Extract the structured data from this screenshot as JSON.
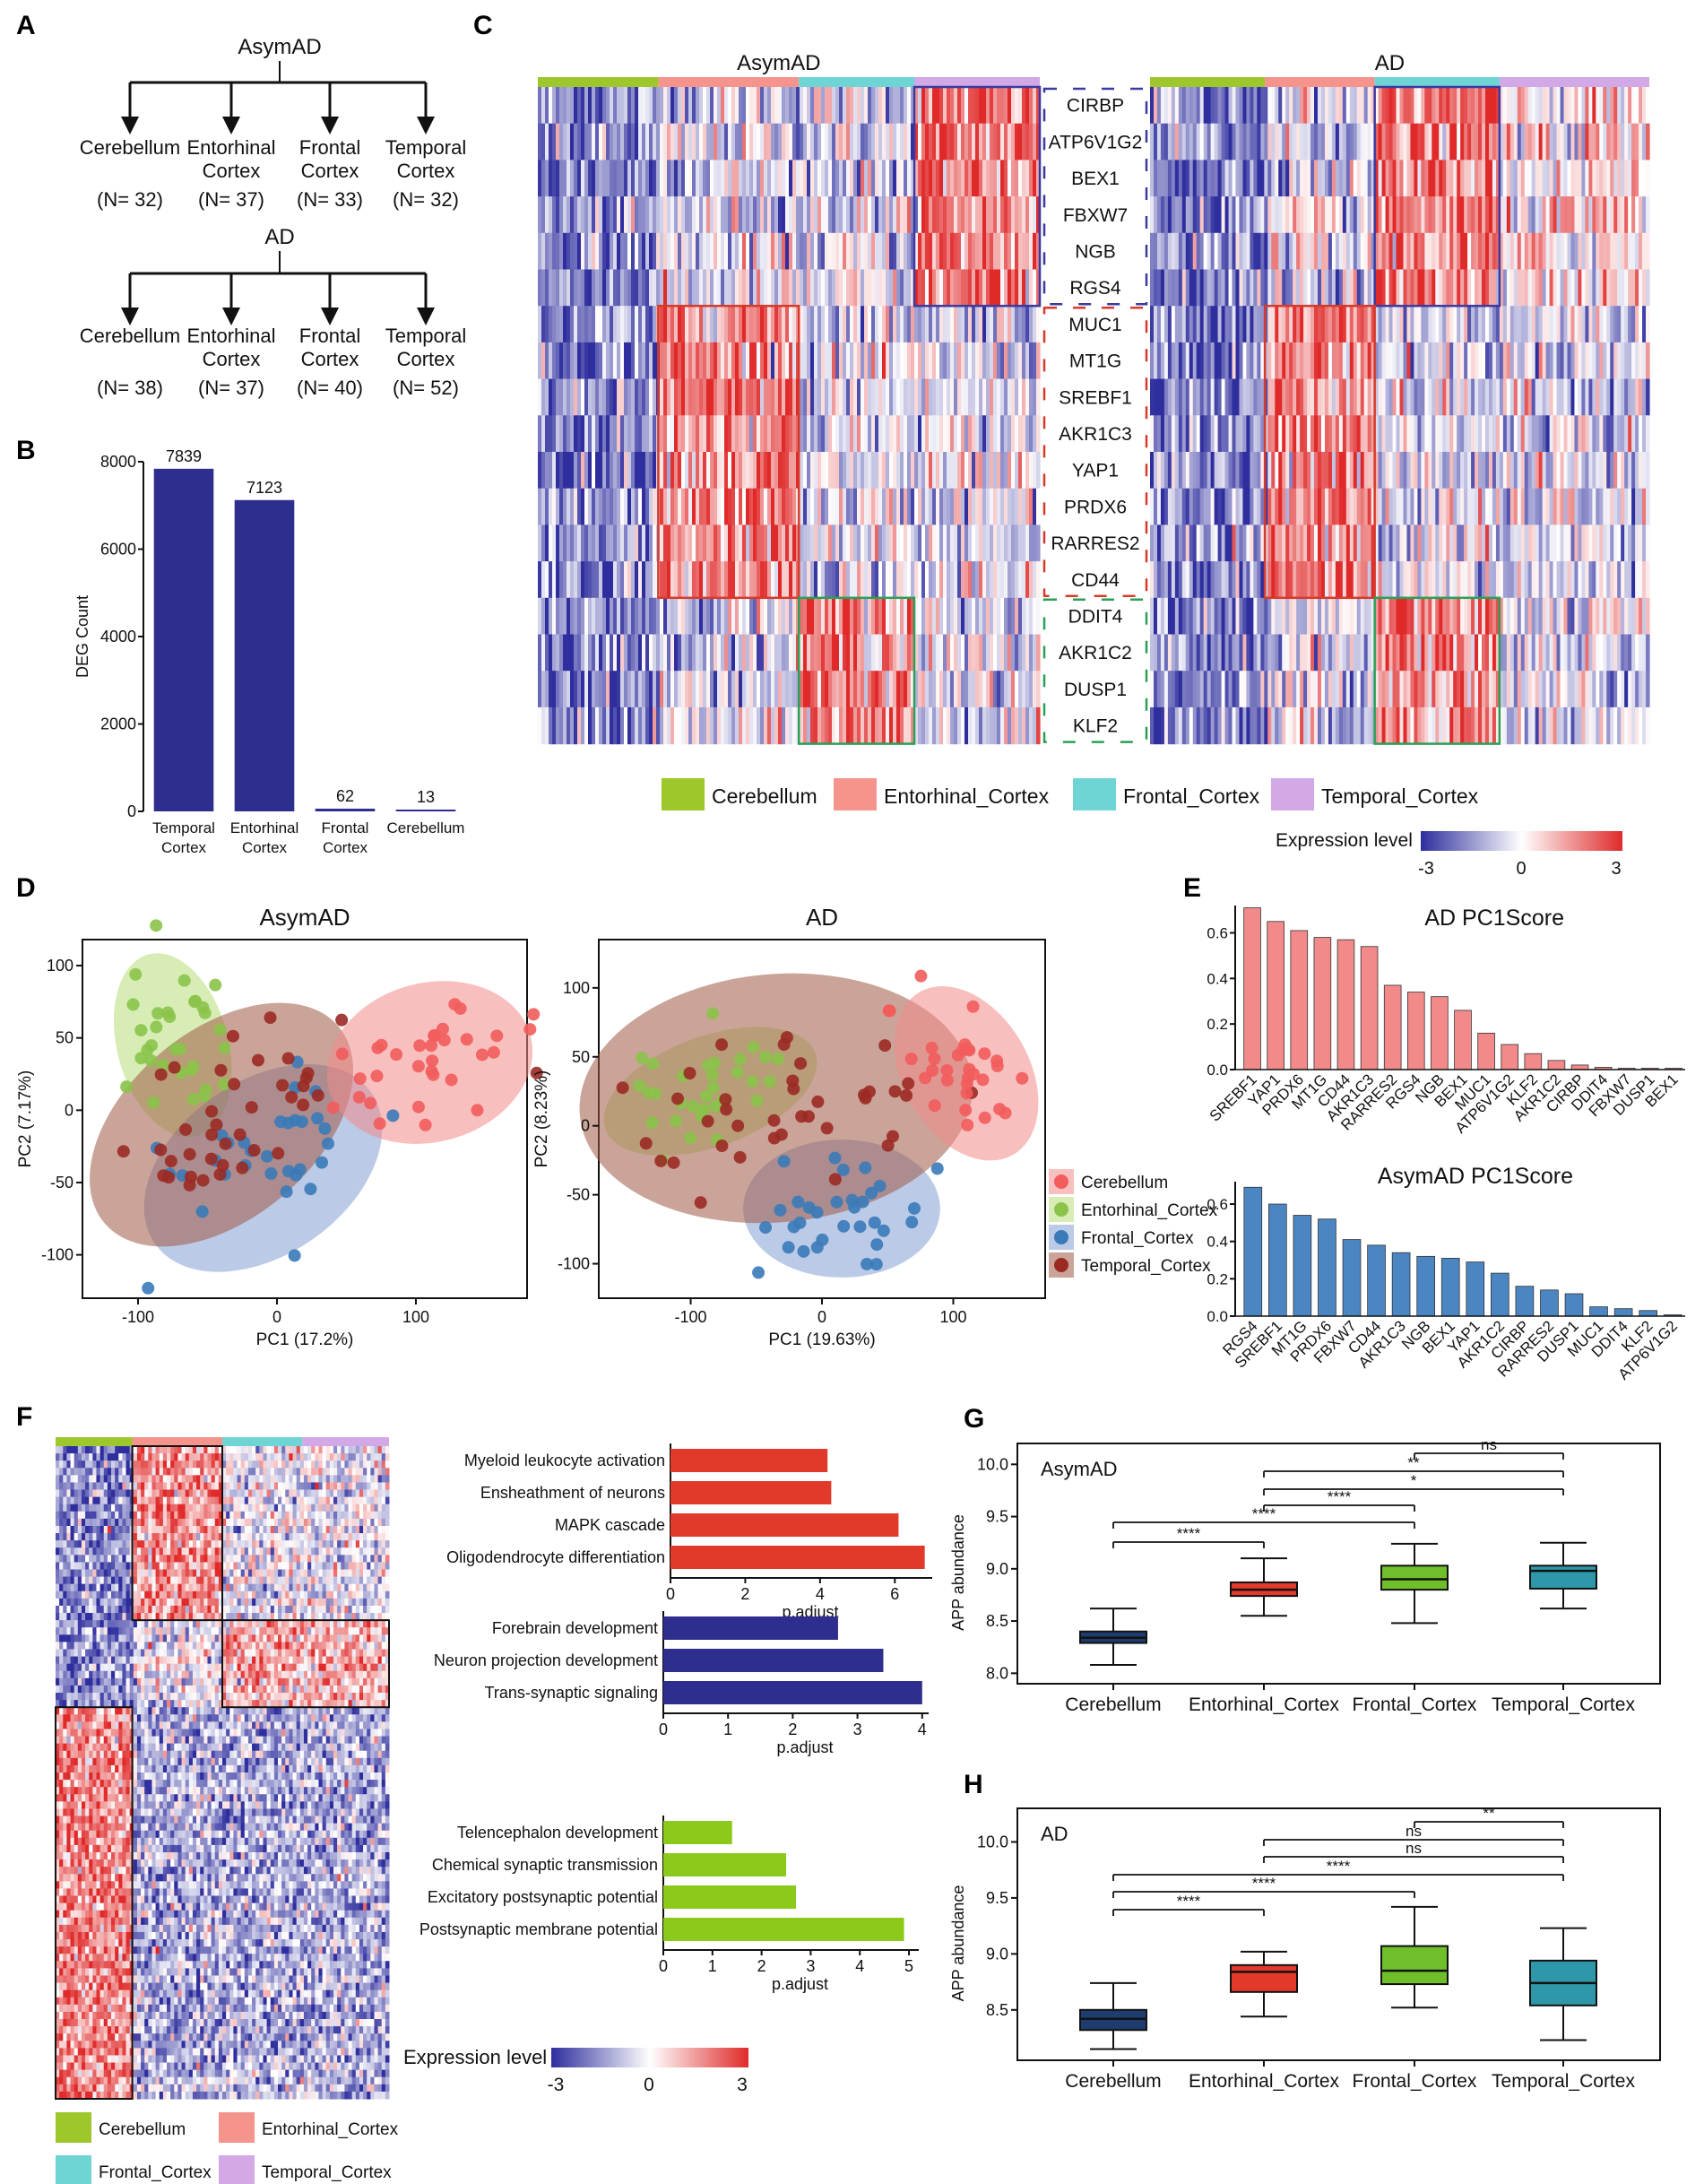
{
  "figure": {
    "panel_letters": [
      "A",
      "B",
      "C",
      "D",
      "E",
      "F",
      "G",
      "H"
    ],
    "legend_regions": [
      "Cerebellum",
      "Entorhinal_Cortex",
      "Frontal_Cortex",
      "Temporal_Cortex"
    ],
    "colors": {
      "Cerebellum": "#9dc72b",
      "Entorhinal_Cortex": "#f4948d",
      "Frontal_Cortex": "#6fd4d4",
      "Temporal_Cortex": "#d2a8e6",
      "heat_low": "#2e2e9e",
      "heat_mid": "#ffffff",
      "heat_high": "#e02a2a",
      "bar_blue": "#2e2e8e",
      "bar_red": "#e23a2a",
      "bar_green": "#8bc91a",
      "pc_red": "#f28a8a",
      "pc_blue": "#4b86c2"
    }
  },
  "panelA": {
    "groups": [
      {
        "title": "AsymAD",
        "children": [
          {
            "name": "Cerebellum",
            "n": "(N= 32)"
          },
          {
            "name": "Entorhinal Cortex",
            "n": "(N= 37)"
          },
          {
            "name": "Frontal Cortex",
            "n": "(N= 33)"
          },
          {
            "name": "Temporal Cortex",
            "n": "(N= 32)"
          }
        ]
      },
      {
        "title": "AD",
        "children": [
          {
            "name": "Cerebellum",
            "n": "(N= 38)"
          },
          {
            "name": "Entorhinal Cortex",
            "n": "(N= 37)"
          },
          {
            "name": "Frontal Cortex",
            "n": "(N= 40)"
          },
          {
            "name": "Temporal Cortex",
            "n": "(N= 52)"
          }
        ]
      }
    ]
  },
  "chart_data": [
    {
      "id": "B",
      "type": "bar",
      "title": "",
      "ylabel": "DEG Count",
      "xlabel": "",
      "categories": [
        "Temporal Cortex",
        "Entorhinal Cortex",
        "Frontal Cortex",
        "Cerebellum"
      ],
      "values": [
        7839,
        7123,
        62,
        13
      ],
      "value_labels": [
        "7839",
        "7123",
        "62",
        "13"
      ],
      "ylim": [
        0,
        8000
      ],
      "yticks": [
        0,
        2000,
        4000,
        6000,
        8000
      ]
    },
    {
      "id": "C",
      "type": "heatmap",
      "groups": [
        "AsymAD",
        "AD"
      ],
      "genes": [
        "CIRBP",
        "ATP6V1G2",
        "BEX1",
        "FBXW7",
        "NGB",
        "RGS4",
        "MUC1",
        "MT1G",
        "SREBF1",
        "AKR1C3",
        "YAP1",
        "PRDX6",
        "RARRES2",
        "CD44",
        "DDIT4",
        "AKR1C2",
        "DUSP1",
        "KLF2"
      ],
      "scale_label": "Expression level",
      "scale_ticks": [
        "-3",
        "0",
        "3"
      ]
    },
    {
      "id": "D1",
      "type": "scatter",
      "title": "AsymAD",
      "xlabel": "PC1 (17.2%)",
      "ylabel": "PC2 (7.17%)",
      "xlim": [
        -140,
        180
      ],
      "ylim": [
        -130,
        118
      ],
      "xticks": [
        -100,
        0,
        100
      ],
      "yticks": [
        -100,
        -50,
        0,
        50,
        100
      ],
      "ellipses": [
        {
          "region": "Cerebellum",
          "cx": 110,
          "cy": 33,
          "rx": 75,
          "ry": 55,
          "angle": -15
        },
        {
          "region": "Entorhinal_Cortex",
          "cx": -75,
          "cy": 45,
          "rx": 40,
          "ry": 65,
          "angle": -15
        },
        {
          "region": "Frontal_Cortex",
          "cx": -10,
          "cy": -40,
          "rx": 95,
          "ry": 60,
          "angle": -35
        },
        {
          "region": "Temporal_Cortex",
          "cx": -40,
          "cy": -10,
          "rx": 110,
          "ry": 65,
          "angle": -40
        }
      ]
    },
    {
      "id": "D2",
      "type": "scatter",
      "title": "AD",
      "xlabel": "PC1 (19.63%)",
      "ylabel": "PC2 (8.23%)",
      "xlim": [
        -170,
        170
      ],
      "ylim": [
        -125,
        135
      ],
      "xticks": [
        -100,
        0,
        100
      ],
      "yticks": [
        -100,
        -50,
        0,
        50,
        100
      ],
      "legend": [
        "Cerebellum",
        "Entorhinal_Cortex",
        "Frontal_Cortex",
        "Temporal_Cortex"
      ],
      "ellipses": [
        {
          "region": "Cerebellum",
          "cx": 110,
          "cy": 38,
          "rx": 48,
          "ry": 68,
          "angle": -30
        },
        {
          "region": "Entorhinal_Cortex",
          "cx": -85,
          "cy": 25,
          "rx": 85,
          "ry": 40,
          "angle": -20
        },
        {
          "region": "Frontal_Cortex",
          "cx": 15,
          "cy": -60,
          "rx": 75,
          "ry": 50,
          "angle": 0
        },
        {
          "region": "Temporal_Cortex",
          "cx": -35,
          "cy": 20,
          "rx": 150,
          "ry": 90,
          "angle": -5
        }
      ]
    },
    {
      "id": "E1",
      "type": "bar",
      "title": "AD PC1Score",
      "categories": [
        "SREBF1",
        "YAP1",
        "PRDX6",
        "MT1G",
        "CD44",
        "AKR1C3",
        "RARRES2",
        "RGS4",
        "NGB",
        "BEX1",
        "MUC1",
        "ATP6V1G2",
        "KLF2",
        "AKR1C2",
        "CIRBP",
        "DDIT4",
        "FBXW7",
        "DUSP1",
        "BEX1"
      ],
      "values": [
        0.71,
        0.65,
        0.61,
        0.58,
        0.57,
        0.54,
        0.37,
        0.34,
        0.32,
        0.26,
        0.16,
        0.11,
        0.07,
        0.04,
        0.02,
        0.01,
        0.005,
        0.002,
        0.001
      ],
      "ylim": [
        0,
        0.72
      ],
      "yticks": [
        "0.0",
        "0.2",
        "0.4",
        "0.6"
      ]
    },
    {
      "id": "E2",
      "type": "bar",
      "title": "AsymAD PC1Score",
      "categories": [
        "RGS4",
        "SREBF1",
        "MT1G",
        "PRDX6",
        "FBXW7",
        "CD44",
        "AKR1C3",
        "NGB",
        "BEX1",
        "YAP1",
        "AKR1C2",
        "CIRBP",
        "RARRES2",
        "DUSP1",
        "MUC1",
        "DDIT4",
        "KLF2",
        "ATP6V1G2"
      ],
      "values": [
        0.69,
        0.6,
        0.54,
        0.52,
        0.41,
        0.38,
        0.34,
        0.32,
        0.31,
        0.29,
        0.23,
        0.16,
        0.14,
        0.12,
        0.05,
        0.04,
        0.03,
        0.005
      ],
      "ylim": [
        0,
        0.72
      ],
      "yticks": [
        "0.0",
        "0.2",
        "0.4",
        "0.6"
      ]
    },
    {
      "id": "F1",
      "type": "bar",
      "orientation": "horizontal",
      "xlabel": "p.adjust",
      "categories": [
        "Myeloid leukocyte activation",
        "Ensheathment of neurons",
        "MAPK cascade",
        "Oligodendrocyte differentiation"
      ],
      "values": [
        4.2,
        4.3,
        6.1,
        6.8
      ],
      "xlim": [
        0,
        7
      ],
      "xticks": [
        "0",
        "2",
        "4",
        "6"
      ]
    },
    {
      "id": "F2",
      "type": "bar",
      "orientation": "horizontal",
      "xlabel": "p.adjust",
      "categories": [
        "Forebrain development",
        "Neuron projection development",
        "Trans-synaptic signaling"
      ],
      "values": [
        2.7,
        3.4,
        4.0
      ],
      "xlim": [
        0,
        4.1
      ],
      "xticks": [
        "0",
        "1",
        "2",
        "3",
        "4"
      ]
    },
    {
      "id": "F3",
      "type": "bar",
      "orientation": "horizontal",
      "xlabel": "p.adjust",
      "categories": [
        "Telencephalon development",
        "Chemical synaptic transmission",
        "Excitatory postsynaptic potential",
        "Postsynaptic membrane potential"
      ],
      "values": [
        1.4,
        2.5,
        2.7,
        4.9
      ],
      "xlim": [
        0,
        5.2
      ],
      "xticks": [
        "0",
        "1",
        "2",
        "3",
        "4",
        "5"
      ]
    },
    {
      "id": "F_heat",
      "type": "heatmap",
      "scale_label": "Expression level",
      "scale_ticks": [
        "-3",
        "0",
        "3"
      ]
    },
    {
      "id": "G",
      "type": "box",
      "title": "AsymAD",
      "ylabel": "APP abundance",
      "categories": [
        "Cerebellum",
        "Entorhinal_Cortex",
        "Frontal_Cortex",
        "Temporal_Cortex"
      ],
      "boxes": [
        {
          "min": 8.08,
          "q1": 8.29,
          "median": 8.34,
          "q3": 8.4,
          "max": 8.62
        },
        {
          "min": 8.55,
          "q1": 8.74,
          "median": 8.8,
          "q3": 8.87,
          "max": 9.1
        },
        {
          "min": 8.48,
          "q1": 8.8,
          "median": 8.9,
          "q3": 9.03,
          "max": 9.24
        },
        {
          "min": 8.62,
          "q1": 8.81,
          "median": 8.98,
          "q3": 9.03,
          "max": 9.25
        }
      ],
      "ylim": [
        7.9,
        10.2
      ],
      "yticks": [
        "8.0",
        "8.5",
        "9.0",
        "9.5",
        "10.0"
      ],
      "sig": [
        {
          "from": 0,
          "to": 1,
          "label": "****"
        },
        {
          "from": 0,
          "to": 2,
          "label": "****"
        },
        {
          "from": 1,
          "to": 2,
          "label": "****"
        },
        {
          "from": 1,
          "to": 3,
          "label": "*"
        },
        {
          "from": 1,
          "to": 3,
          "label": "**"
        },
        {
          "from": 2,
          "to": 3,
          "label": "ns"
        }
      ]
    },
    {
      "id": "H",
      "type": "box",
      "title": "AD",
      "ylabel": "APP abundance",
      "categories": [
        "Cerebellum",
        "Entorhinal_Cortex",
        "Frontal_Cortex",
        "Temporal_Cortex"
      ],
      "boxes": [
        {
          "min": 8.15,
          "q1": 8.32,
          "median": 8.42,
          "q3": 8.5,
          "max": 8.74
        },
        {
          "min": 8.44,
          "q1": 8.66,
          "median": 8.84,
          "q3": 8.9,
          "max": 9.02
        },
        {
          "min": 8.52,
          "q1": 8.73,
          "median": 8.85,
          "q3": 9.07,
          "max": 9.42
        },
        {
          "min": 8.23,
          "q1": 8.54,
          "median": 8.74,
          "q3": 8.94,
          "max": 9.23
        }
      ],
      "ylim": [
        8.05,
        10.3
      ],
      "yticks": [
        "8.5",
        "9.0",
        "9.5",
        "10.0"
      ],
      "sig": [
        {
          "from": 0,
          "to": 1,
          "label": "****"
        },
        {
          "from": 0,
          "to": 2,
          "label": "****"
        },
        {
          "from": 0,
          "to": 3,
          "label": "****"
        },
        {
          "from": 1,
          "to": 3,
          "label": "ns"
        },
        {
          "from": 1,
          "to": 3,
          "label": "ns"
        },
        {
          "from": 2,
          "to": 3,
          "label": "**"
        }
      ]
    }
  ]
}
